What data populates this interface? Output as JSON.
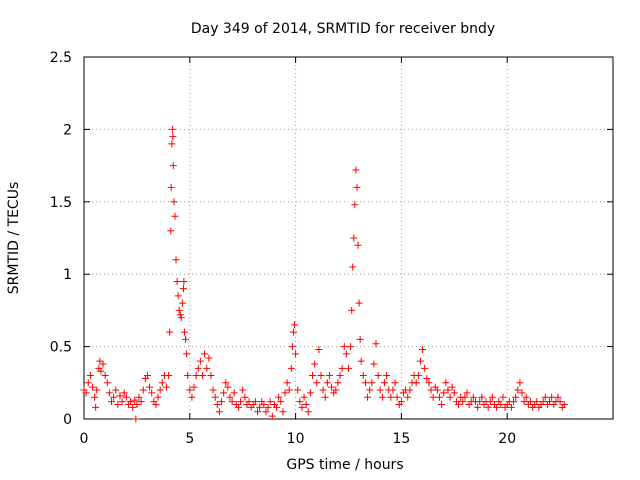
{
  "chart_data": {
    "type": "scatter",
    "title": "Day 349 of 2014, SRMTID for receiver bndy",
    "xlabel": "GPS time / hours",
    "ylabel": "SRMTID / TECUs",
    "xlim": [
      0,
      25
    ],
    "ylim": [
      0,
      2.5
    ],
    "xticks": [
      0,
      5,
      10,
      15,
      20
    ],
    "xtick_labels": [
      "0",
      "5",
      "10",
      "15",
      "20"
    ],
    "yticks": [
      0,
      0.5,
      1,
      1.5,
      2,
      2.5
    ],
    "ytick_labels": [
      "0",
      "0.5",
      "1",
      "1.5",
      "2",
      "2.5"
    ],
    "grid": true,
    "marker": "+",
    "color": "#ff0000",
    "series": [
      {
        "name": "SRMTID",
        "points": [
          [
            0.0,
            0.2
          ],
          [
            0.1,
            0.18
          ],
          [
            0.2,
            0.25
          ],
          [
            0.3,
            0.3
          ],
          [
            0.4,
            0.22
          ],
          [
            0.5,
            0.15
          ],
          [
            0.55,
            0.08
          ],
          [
            0.6,
            0.2
          ],
          [
            0.7,
            0.35
          ],
          [
            0.75,
            0.4
          ],
          [
            0.8,
            0.33
          ],
          [
            0.9,
            0.38
          ],
          [
            1.0,
            0.3
          ],
          [
            1.1,
            0.25
          ],
          [
            1.2,
            0.18
          ],
          [
            1.3,
            0.12
          ],
          [
            1.4,
            0.15
          ],
          [
            1.5,
            0.2
          ],
          [
            1.6,
            0.1
          ],
          [
            1.7,
            0.16
          ],
          [
            1.8,
            0.12
          ],
          [
            1.9,
            0.18
          ],
          [
            2.0,
            0.15
          ],
          [
            2.1,
            0.1
          ],
          [
            2.2,
            0.12
          ],
          [
            2.3,
            0.08
          ],
          [
            2.4,
            0.13
          ],
          [
            2.45,
            0.0
          ],
          [
            2.5,
            0.1
          ],
          [
            2.6,
            0.15
          ],
          [
            2.7,
            0.12
          ],
          [
            2.8,
            0.2
          ],
          [
            2.9,
            0.28
          ],
          [
            3.0,
            0.3
          ],
          [
            3.1,
            0.22
          ],
          [
            3.2,
            0.18
          ],
          [
            3.3,
            0.12
          ],
          [
            3.4,
            0.1
          ],
          [
            3.5,
            0.15
          ],
          [
            3.6,
            0.2
          ],
          [
            3.7,
            0.25
          ],
          [
            3.8,
            0.3
          ],
          [
            3.9,
            0.22
          ],
          [
            4.0,
            0.3
          ],
          [
            4.05,
            0.6
          ],
          [
            4.1,
            1.3
          ],
          [
            4.12,
            1.6
          ],
          [
            4.15,
            1.9
          ],
          [
            4.18,
            2.0
          ],
          [
            4.2,
            1.95
          ],
          [
            4.22,
            1.75
          ],
          [
            4.25,
            1.5
          ],
          [
            4.3,
            1.4
          ],
          [
            4.35,
            1.1
          ],
          [
            4.4,
            0.95
          ],
          [
            4.45,
            0.85
          ],
          [
            4.5,
            0.75
          ],
          [
            4.55,
            0.72
          ],
          [
            4.6,
            0.7
          ],
          [
            4.65,
            0.8
          ],
          [
            4.7,
            0.9
          ],
          [
            4.72,
            0.95
          ],
          [
            4.75,
            0.6
          ],
          [
            4.8,
            0.55
          ],
          [
            4.85,
            0.45
          ],
          [
            4.9,
            0.3
          ],
          [
            5.0,
            0.2
          ],
          [
            5.1,
            0.15
          ],
          [
            5.2,
            0.22
          ],
          [
            5.3,
            0.3
          ],
          [
            5.4,
            0.35
          ],
          [
            5.5,
            0.4
          ],
          [
            5.6,
            0.3
          ],
          [
            5.7,
            0.45
          ],
          [
            5.8,
            0.35
          ],
          [
            5.9,
            0.42
          ],
          [
            6.0,
            0.3
          ],
          [
            6.1,
            0.2
          ],
          [
            6.2,
            0.15
          ],
          [
            6.3,
            0.1
          ],
          [
            6.4,
            0.05
          ],
          [
            6.5,
            0.12
          ],
          [
            6.6,
            0.18
          ],
          [
            6.7,
            0.25
          ],
          [
            6.8,
            0.22
          ],
          [
            6.9,
            0.15
          ],
          [
            7.0,
            0.12
          ],
          [
            7.1,
            0.18
          ],
          [
            7.2,
            0.1
          ],
          [
            7.3,
            0.08
          ],
          [
            7.4,
            0.12
          ],
          [
            7.5,
            0.2
          ],
          [
            7.6,
            0.15
          ],
          [
            7.7,
            0.1
          ],
          [
            7.8,
            0.12
          ],
          [
            7.9,
            0.08
          ],
          [
            8.0,
            0.1
          ],
          [
            8.1,
            0.12
          ],
          [
            8.2,
            0.05
          ],
          [
            8.3,
            0.08
          ],
          [
            8.4,
            0.12
          ],
          [
            8.5,
            0.1
          ],
          [
            8.6,
            0.05
          ],
          [
            8.7,
            0.08
          ],
          [
            8.8,
            0.12
          ],
          [
            8.9,
            0.02
          ],
          [
            9.0,
            0.1
          ],
          [
            9.1,
            0.08
          ],
          [
            9.2,
            0.15
          ],
          [
            9.3,
            0.12
          ],
          [
            9.4,
            0.05
          ],
          [
            9.5,
            0.18
          ],
          [
            9.6,
            0.25
          ],
          [
            9.7,
            0.2
          ],
          [
            9.8,
            0.35
          ],
          [
            9.85,
            0.5
          ],
          [
            9.9,
            0.6
          ],
          [
            9.95,
            0.65
          ],
          [
            10.0,
            0.45
          ],
          [
            10.1,
            0.2
          ],
          [
            10.2,
            0.12
          ],
          [
            10.3,
            0.08
          ],
          [
            10.4,
            0.15
          ],
          [
            10.5,
            0.1
          ],
          [
            10.6,
            0.05
          ],
          [
            10.7,
            0.18
          ],
          [
            10.8,
            0.3
          ],
          [
            10.9,
            0.38
          ],
          [
            11.0,
            0.25
          ],
          [
            11.1,
            0.48
          ],
          [
            11.2,
            0.3
          ],
          [
            11.3,
            0.2
          ],
          [
            11.4,
            0.15
          ],
          [
            11.5,
            0.25
          ],
          [
            11.6,
            0.3
          ],
          [
            11.7,
            0.22
          ],
          [
            11.8,
            0.18
          ],
          [
            11.9,
            0.2
          ],
          [
            12.0,
            0.25
          ],
          [
            12.1,
            0.3
          ],
          [
            12.2,
            0.35
          ],
          [
            12.3,
            0.5
          ],
          [
            12.4,
            0.45
          ],
          [
            12.5,
            0.35
          ],
          [
            12.6,
            0.5
          ],
          [
            12.65,
            0.75
          ],
          [
            12.7,
            1.05
          ],
          [
            12.75,
            1.25
          ],
          [
            12.8,
            1.48
          ],
          [
            12.85,
            1.72
          ],
          [
            12.9,
            1.6
          ],
          [
            12.95,
            1.2
          ],
          [
            13.0,
            0.8
          ],
          [
            13.05,
            0.55
          ],
          [
            13.1,
            0.4
          ],
          [
            13.2,
            0.3
          ],
          [
            13.3,
            0.25
          ],
          [
            13.4,
            0.15
          ],
          [
            13.5,
            0.2
          ],
          [
            13.6,
            0.25
          ],
          [
            13.7,
            0.38
          ],
          [
            13.8,
            0.52
          ],
          [
            13.9,
            0.3
          ],
          [
            14.0,
            0.2
          ],
          [
            14.1,
            0.15
          ],
          [
            14.2,
            0.25
          ],
          [
            14.3,
            0.3
          ],
          [
            14.4,
            0.2
          ],
          [
            14.5,
            0.15
          ],
          [
            14.6,
            0.2
          ],
          [
            14.7,
            0.25
          ],
          [
            14.8,
            0.15
          ],
          [
            14.9,
            0.1
          ],
          [
            15.0,
            0.12
          ],
          [
            15.1,
            0.18
          ],
          [
            15.2,
            0.2
          ],
          [
            15.3,
            0.15
          ],
          [
            15.4,
            0.2
          ],
          [
            15.5,
            0.25
          ],
          [
            15.6,
            0.3
          ],
          [
            15.7,
            0.25
          ],
          [
            15.8,
            0.3
          ],
          [
            15.9,
            0.4
          ],
          [
            16.0,
            0.48
          ],
          [
            16.1,
            0.35
          ],
          [
            16.2,
            0.28
          ],
          [
            16.3,
            0.25
          ],
          [
            16.4,
            0.2
          ],
          [
            16.5,
            0.15
          ],
          [
            16.6,
            0.22
          ],
          [
            16.7,
            0.2
          ],
          [
            16.8,
            0.15
          ],
          [
            16.9,
            0.1
          ],
          [
            17.0,
            0.18
          ],
          [
            17.1,
            0.25
          ],
          [
            17.2,
            0.2
          ],
          [
            17.3,
            0.15
          ],
          [
            17.4,
            0.22
          ],
          [
            17.5,
            0.18
          ],
          [
            17.6,
            0.12
          ],
          [
            17.7,
            0.1
          ],
          [
            17.8,
            0.15
          ],
          [
            17.9,
            0.12
          ],
          [
            18.0,
            0.15
          ],
          [
            18.1,
            0.18
          ],
          [
            18.2,
            0.1
          ],
          [
            18.3,
            0.12
          ],
          [
            18.4,
            0.15
          ],
          [
            18.5,
            0.12
          ],
          [
            18.6,
            0.08
          ],
          [
            18.7,
            0.12
          ],
          [
            18.8,
            0.15
          ],
          [
            18.9,
            0.1
          ],
          [
            19.0,
            0.12
          ],
          [
            19.1,
            0.08
          ],
          [
            19.2,
            0.12
          ],
          [
            19.3,
            0.15
          ],
          [
            19.4,
            0.1
          ],
          [
            19.5,
            0.08
          ],
          [
            19.6,
            0.12
          ],
          [
            19.7,
            0.1
          ],
          [
            19.8,
            0.15
          ],
          [
            19.9,
            0.08
          ],
          [
            20.0,
            0.1
          ],
          [
            20.1,
            0.12
          ],
          [
            20.2,
            0.08
          ],
          [
            20.3,
            0.12
          ],
          [
            20.4,
            0.15
          ],
          [
            20.5,
            0.2
          ],
          [
            20.6,
            0.25
          ],
          [
            20.7,
            0.18
          ],
          [
            20.8,
            0.12
          ],
          [
            20.9,
            0.15
          ],
          [
            21.0,
            0.1
          ],
          [
            21.1,
            0.12
          ],
          [
            21.2,
            0.08
          ],
          [
            21.3,
            0.1
          ],
          [
            21.4,
            0.12
          ],
          [
            21.5,
            0.08
          ],
          [
            21.6,
            0.1
          ],
          [
            21.7,
            0.12
          ],
          [
            21.8,
            0.15
          ],
          [
            21.9,
            0.1
          ],
          [
            22.0,
            0.12
          ],
          [
            22.1,
            0.15
          ],
          [
            22.2,
            0.1
          ],
          [
            22.3,
            0.12
          ],
          [
            22.4,
            0.15
          ],
          [
            22.5,
            0.12
          ],
          [
            22.6,
            0.08
          ],
          [
            22.7,
            0.1
          ]
        ]
      }
    ]
  }
}
